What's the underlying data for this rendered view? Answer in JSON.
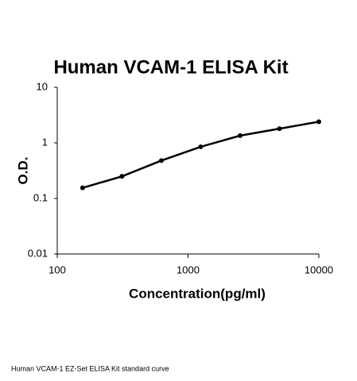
{
  "chart_data": {
    "type": "scatter",
    "title": "Human VCAM-1 ELISA Kit",
    "x_label": "Concentration(pg/ml)",
    "y_label": "O.D.",
    "caption": "Human VCAM-1 EZ-Set ELISA Kit standard curve",
    "x": [
      156.25,
      312.5,
      625,
      1250,
      2500,
      5000,
      10000
    ],
    "series": [
      {
        "color": "#000000",
        "values": [
          0.155,
          0.25,
          0.48,
          0.85,
          1.35,
          1.8,
          2.4
        ]
      }
    ],
    "xscale": "log",
    "yscale": "log",
    "xlim": [
      100,
      10000
    ],
    "ylim": [
      0.01,
      10
    ],
    "xticks": [
      100,
      1000,
      10000
    ],
    "yticks": [
      0.01,
      0.1,
      1,
      10
    ]
  }
}
